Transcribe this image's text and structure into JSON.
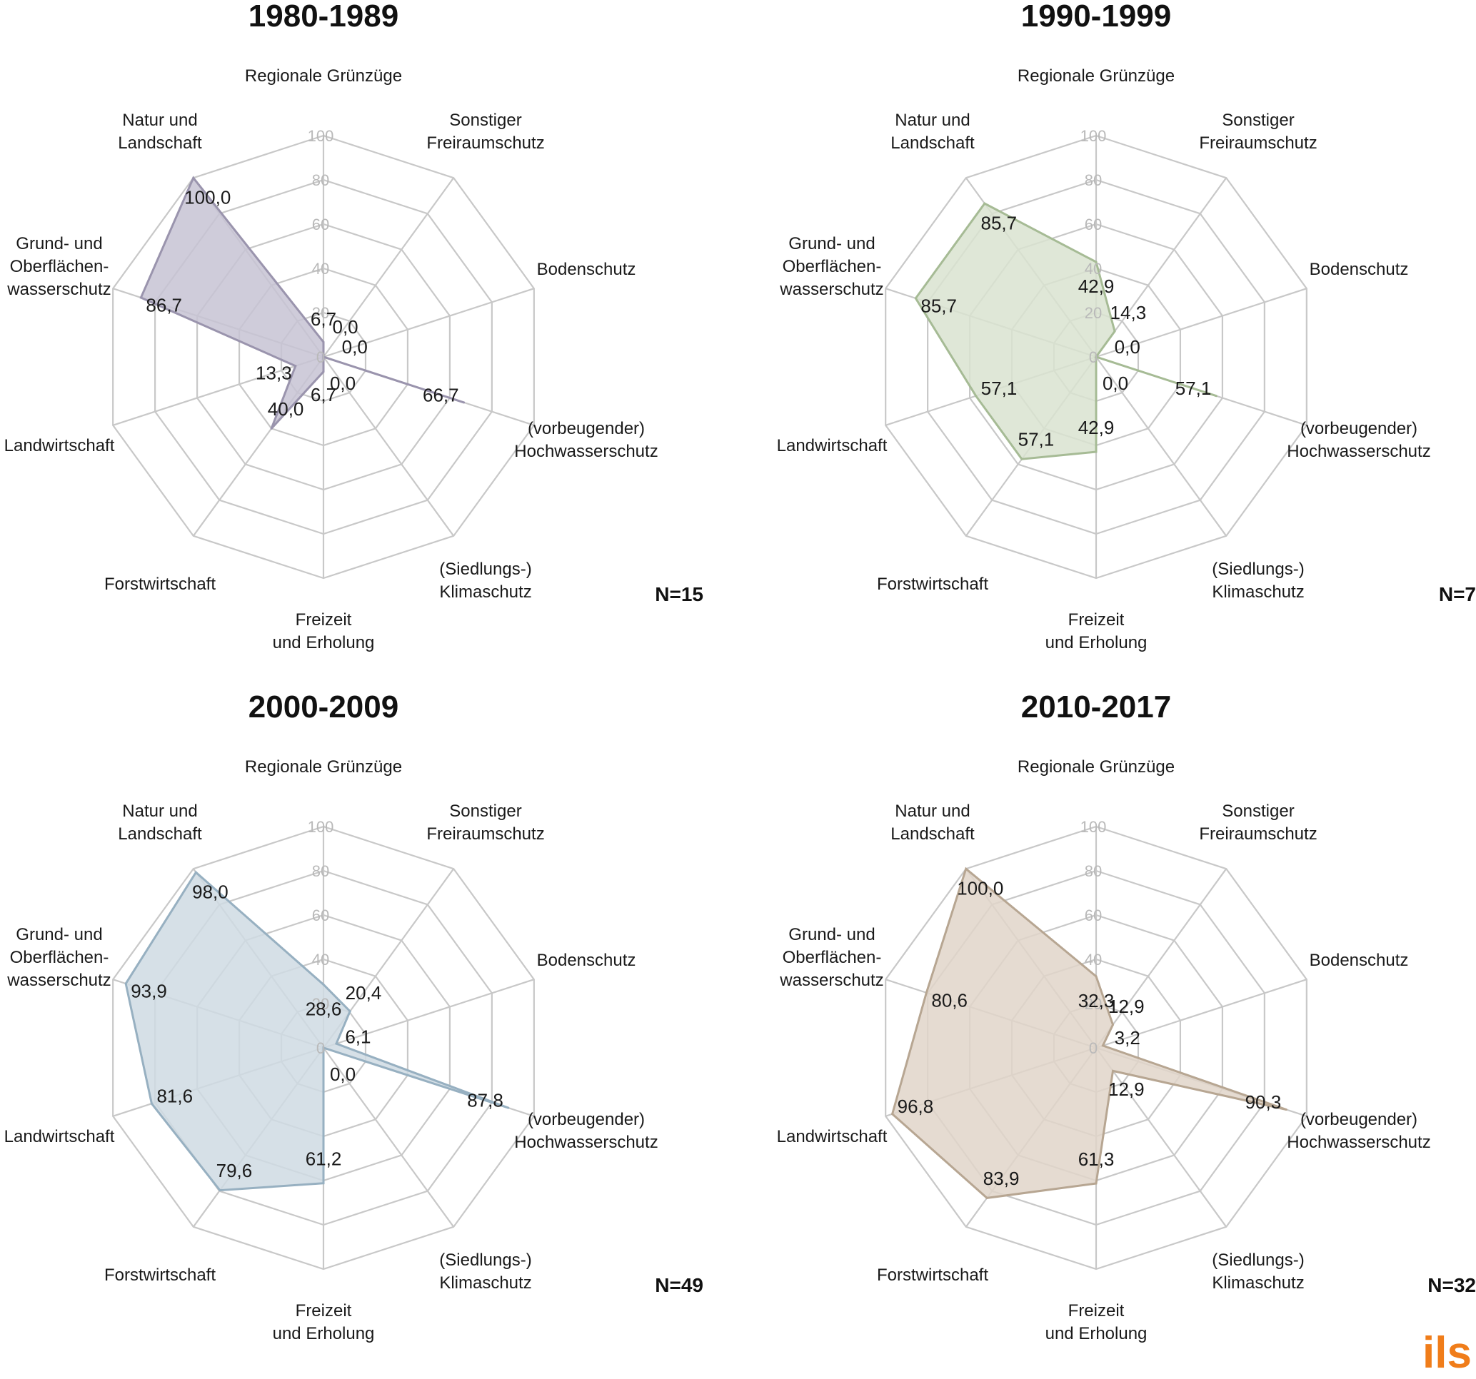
{
  "chart_data": [
    {
      "type": "radar",
      "title": "1980-1989",
      "n_label": "N=15",
      "axes": [
        "Regionale Grünzüge",
        "Sonstiger Freiraumschutz",
        "Bodenschutz",
        "(vorbeugender) Hochwasserschutz",
        "(Siedlungs-) Klimaschutz",
        "Freizeit und Erholung",
        "Forstwirtschaft",
        "Landwirtschaft",
        "Grund- und Oberflächen-wasserschutz",
        "Natur und Landschaft"
      ],
      "rlim": [
        0,
        100
      ],
      "ticks": [
        "0",
        "20",
        "40",
        "60",
        "80",
        "100"
      ],
      "values": [
        6.7,
        0.0,
        0.0,
        66.7,
        0.0,
        6.7,
        40.0,
        13.3,
        86.7,
        100.0
      ],
      "value_labels": [
        "6,7",
        "0,0",
        "0,0",
        "66,7",
        "0,0",
        "6,7",
        "40,0",
        "13,3",
        "86,7",
        "100,0"
      ],
      "fill": "#c7c3d3",
      "stroke": "#9a94ad"
    },
    {
      "type": "radar",
      "title": "1990-1999",
      "n_label": "N=7",
      "axes": [
        "Regionale Grünzüge",
        "Sonstiger Freiraumschutz",
        "Bodenschutz",
        "(vorbeugender) Hochwasserschutz",
        "(Siedlungs-) Klimaschutz",
        "Freizeit und Erholung",
        "Forstwirtschaft",
        "Landwirtschaft",
        "Grund- und Oberflächen-wasserschutz",
        "Natur und Landschaft"
      ],
      "rlim": [
        0,
        100
      ],
      "ticks": [
        "0",
        "20",
        "40",
        "60",
        "80",
        "100"
      ],
      "values": [
        42.9,
        14.3,
        0.0,
        57.1,
        0.0,
        42.9,
        57.1,
        57.1,
        85.7,
        85.7
      ],
      "value_labels": [
        "42,9",
        "14,3",
        "0,0",
        "57,1",
        "0,0",
        "42,9",
        "57,1",
        "57,1",
        "85,7",
        "85,7"
      ],
      "fill": "#d9e3d0",
      "stroke": "#a6bb95"
    },
    {
      "type": "radar",
      "title": "2000-2009",
      "n_label": "N=49",
      "axes": [
        "Regionale Grünzüge",
        "Sonstiger Freiraumschutz",
        "Bodenschutz",
        "(vorbeugender) Hochwasserschutz",
        "(Siedlungs-) Klimaschutz",
        "Freizeit und Erholung",
        "Forstwirtschaft",
        "Landwirtschaft",
        "Grund- und Oberflächen-wasserschutz",
        "Natur und Landschaft"
      ],
      "rlim": [
        0,
        100
      ],
      "ticks": [
        "0",
        "20",
        "40",
        "60",
        "80",
        "100"
      ],
      "values": [
        28.6,
        20.4,
        6.1,
        87.8,
        0.0,
        61.2,
        79.6,
        81.6,
        93.9,
        98.0
      ],
      "value_labels": [
        "28,6",
        "20,4",
        "6,1",
        "87,8",
        "0,0",
        "61,2",
        "79,6",
        "81,6",
        "93,9",
        "98,0"
      ],
      "fill": "#cfdae3",
      "stroke": "#97b0c1"
    },
    {
      "type": "radar",
      "title": "2010-2017",
      "n_label": "N=32",
      "axes": [
        "Regionale Grünzüge",
        "Sonstiger Freiraumschutz",
        "Bodenschutz",
        "(vorbeugender) Hochwasserschutz",
        "(Siedlungs-) Klimaschutz",
        "Freizeit und Erholung",
        "Forstwirtschaft",
        "Landwirtschaft",
        "Grund- und Oberflächen-wasserschutz",
        "Natur und Landschaft"
      ],
      "rlim": [
        0,
        100
      ],
      "ticks": [
        "0",
        "20",
        "40",
        "60",
        "80",
        "100"
      ],
      "values": [
        32.3,
        12.9,
        3.2,
        90.3,
        12.9,
        61.3,
        83.9,
        96.8,
        80.6,
        100.0
      ],
      "value_labels": [
        "32,3",
        "12,9",
        "3,2",
        "90,3",
        "12,9",
        "61,3",
        "83,9",
        "96,8",
        "80,6",
        "100,0"
      ],
      "fill": "#e0d5c9",
      "stroke": "#b7a692"
    }
  ],
  "logo": {
    "text": "ils",
    "color": "#f07d1a"
  }
}
